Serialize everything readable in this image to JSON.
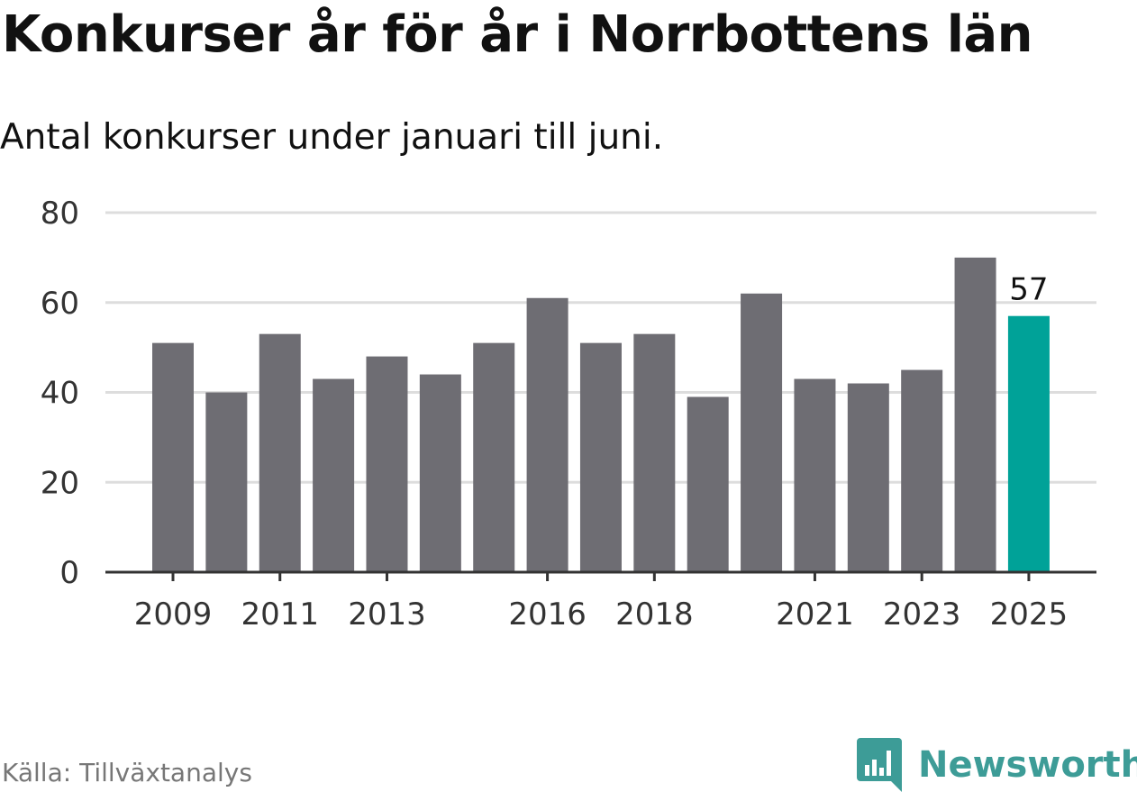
{
  "title": "Konkurser år för år i Norrbottens län",
  "subtitle": "Antal konkurser under januari till juni.",
  "source": "Källa: Tillväxtanalys",
  "logo": {
    "text": "Newsworthy",
    "icon": "newsworthy-bar-chart-icon",
    "color": "#3d9c97"
  },
  "colors": {
    "bar": "#6e6d73",
    "highlight": "#00a298",
    "grid": "#dddddd",
    "axis": "#333333"
  },
  "chart_data": {
    "type": "bar",
    "categories": [
      "2009",
      "2010",
      "2011",
      "2012",
      "2013",
      "2014",
      "2015",
      "2016",
      "2017",
      "2018",
      "2019",
      "2020",
      "2021",
      "2022",
      "2023",
      "2024",
      "2025"
    ],
    "values": [
      51,
      40,
      53,
      43,
      48,
      44,
      51,
      61,
      51,
      53,
      39,
      62,
      43,
      42,
      45,
      70,
      57
    ],
    "x_tick_labels": [
      "2009",
      "2011",
      "2013",
      "2016",
      "2018",
      "2021",
      "2023",
      "2025"
    ],
    "y_ticks": [
      "0",
      "20",
      "40",
      "60",
      "80"
    ],
    "ylim": [
      0,
      80
    ],
    "grid": true,
    "highlight_category": "2025",
    "annotation": {
      "category": "2025",
      "text": "57"
    },
    "xlabel": "",
    "ylabel": ""
  }
}
